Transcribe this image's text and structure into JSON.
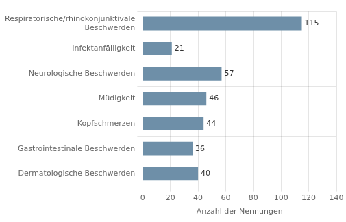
{
  "chart_data": {
    "type": "bar",
    "orientation": "horizontal",
    "categories": [
      "Dermatologische Beschwerden",
      "Gastrointestinale Beschwerden",
      "Kopfschmerzen",
      "Müdigkeit",
      "Neurologische Beschwerden",
      "Infektanfälligkeit",
      "Respiratorische/rhinokonjunktivale\nBeschwerden"
    ],
    "values": [
      40,
      36,
      44,
      46,
      57,
      21,
      115
    ],
    "color": "#6e8fa8",
    "xlabel": "Anzahl der Nennungen",
    "xlim": [
      0,
      140
    ],
    "xticks": [
      0,
      20,
      40,
      60,
      80,
      100,
      120,
      140
    ],
    "grid": true,
    "data_labels": true
  }
}
